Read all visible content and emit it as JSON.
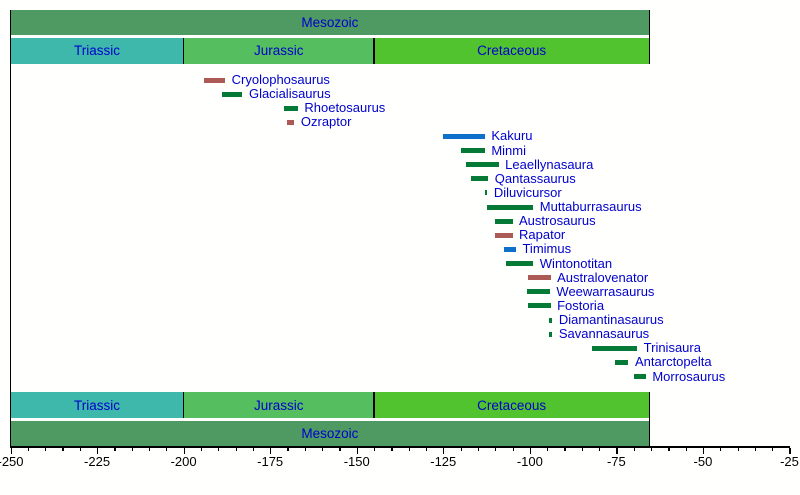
{
  "palette": {
    "era_green": "#4E9A62",
    "triassic_teal": "#3FB8AC",
    "jurassic_green": "#55BE5E",
    "cretaceous_green": "#50C32E",
    "range_green": "#047A36",
    "range_red": "#AC5A55",
    "range_blue": "#0E70C8",
    "label_blue": "#0000CC",
    "axis_black": "#000000",
    "background": "#FFFFFE"
  },
  "chart_data": {
    "type": "bar",
    "variant": "horizontal-range-timeline",
    "unit": "millions of years ago",
    "xlim": [
      -250,
      -25
    ],
    "x_major_ticks": [
      -250,
      -225,
      -200,
      -175,
      -150,
      -125,
      -100,
      -75,
      -50,
      -25
    ],
    "x_major_tick_labels": [
      "-250",
      "-225",
      "-200",
      "-175",
      "-150",
      "-125",
      "-100",
      "-75",
      "-50",
      "-25"
    ],
    "x_minor_step": 5,
    "grid": false,
    "era": {
      "label": "Mesozoic",
      "from": -250,
      "till": -65.5,
      "color_key": "era_green"
    },
    "periods": [
      {
        "label": "Triassic",
        "from": -250,
        "till": -200,
        "color_key": "triassic_teal"
      },
      {
        "label": "Jurassic",
        "from": -200,
        "till": -145,
        "color_key": "jurassic_green"
      },
      {
        "label": "Cretaceous",
        "from": -145,
        "till": -65.5,
        "color_key": "cretaceous_green"
      }
    ],
    "taxa": [
      {
        "name": "Cryolophosaurus",
        "from": -194,
        "till": -188,
        "color_key": "range_red"
      },
      {
        "name": "Glacialisaurus",
        "from": -189,
        "till": -183,
        "color_key": "range_green"
      },
      {
        "name": "Rhoetosaurus",
        "from": -171,
        "till": -167,
        "color_key": "range_green"
      },
      {
        "name": "Ozraptor",
        "from": -170,
        "till": -168,
        "color_key": "range_red"
      },
      {
        "name": "Kakuru",
        "from": -125,
        "till": -113,
        "color_key": "range_blue"
      },
      {
        "name": "Minmi",
        "from": -120,
        "till": -113,
        "color_key": "range_green"
      },
      {
        "name": "Leaellynasaura",
        "from": -118.5,
        "till": -109,
        "color_key": "range_green"
      },
      {
        "name": "Qantassaurus",
        "from": -117,
        "till": -112,
        "color_key": "range_green"
      },
      {
        "name": "Diluvicursor",
        "from": -113,
        "till": -112.3,
        "color_key": "range_green"
      },
      {
        "name": "Muttaburrasaurus",
        "from": -112.5,
        "till": -99,
        "color_key": "range_green"
      },
      {
        "name": "Austrosaurus",
        "from": -110,
        "till": -105,
        "color_key": "range_green"
      },
      {
        "name": "Rapator",
        "from": -110,
        "till": -105,
        "color_key": "range_red"
      },
      {
        "name": "Timimus",
        "from": -107.5,
        "till": -104,
        "color_key": "range_blue"
      },
      {
        "name": "Wintonotitan",
        "from": -107,
        "till": -99,
        "color_key": "range_green"
      },
      {
        "name": "Australovenator",
        "from": -100.5,
        "till": -94,
        "color_key": "range_red"
      },
      {
        "name": "Weewarrasaurus",
        "from": -100.7,
        "till": -94.2,
        "color_key": "range_green"
      },
      {
        "name": "Fostoria",
        "from": -100.5,
        "till": -94,
        "color_key": "range_green"
      },
      {
        "name": "Diamantinasaurus",
        "from": -94.5,
        "till": -93.5,
        "color_key": "range_green"
      },
      {
        "name": "Savannasaurus",
        "from": -94.5,
        "till": -93.5,
        "color_key": "range_green"
      },
      {
        "name": "Trinisaura",
        "from": -82,
        "till": -69,
        "color_key": "range_green"
      },
      {
        "name": "Antarctopelta",
        "from": -75.5,
        "till": -71.5,
        "color_key": "range_green"
      },
      {
        "name": "Morrosaurus",
        "from": -70,
        "till": -66.5,
        "color_key": "range_green"
      }
    ]
  }
}
